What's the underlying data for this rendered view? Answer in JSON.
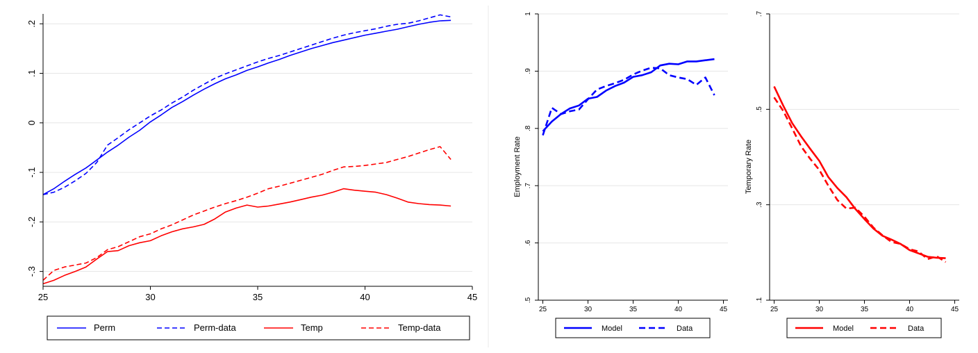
{
  "colors": {
    "blue": "#0000ff",
    "red": "#ff0000",
    "grid": "#e6e6e6"
  },
  "chart_data": [
    {
      "type": "line",
      "id": "left",
      "xlim": [
        25,
        45
      ],
      "ylim": [
        -0.33,
        0.22
      ],
      "xticks": [
        25,
        30,
        35,
        40,
        45
      ],
      "yticks": [
        -0.3,
        -0.2,
        -0.1,
        0,
        0.1,
        0.2
      ],
      "ytick_labels": [
        "-.3",
        "-.2",
        "-.1",
        "0",
        ".1",
        ".2"
      ],
      "grid": true,
      "legend_position": "bottom",
      "series": [
        {
          "name": "Perm",
          "color": "#0000ff",
          "style": "solid",
          "x": [
            25,
            25.5,
            26,
            26.5,
            27,
            27.5,
            28,
            28.5,
            29,
            29.5,
            30,
            30.5,
            31,
            31.5,
            32,
            32.5,
            33,
            33.5,
            34,
            34.5,
            35,
            35.5,
            36,
            36.5,
            37,
            37.5,
            38,
            38.5,
            39,
            39.5,
            40,
            40.5,
            41,
            41.5,
            42,
            42.5,
            43,
            43.5,
            44
          ],
          "y": [
            -0.145,
            -0.133,
            -0.118,
            -0.104,
            -0.091,
            -0.075,
            -0.059,
            -0.045,
            -0.029,
            -0.015,
            0.002,
            0.016,
            0.031,
            0.043,
            0.056,
            0.068,
            0.079,
            0.089,
            0.097,
            0.106,
            0.113,
            0.121,
            0.128,
            0.136,
            0.143,
            0.15,
            0.156,
            0.162,
            0.167,
            0.172,
            0.177,
            0.181,
            0.185,
            0.189,
            0.194,
            0.199,
            0.203,
            0.206,
            0.207
          ]
        },
        {
          "name": "Perm-data",
          "color": "#0000ff",
          "style": "dash",
          "x": [
            25,
            25.5,
            26,
            26.5,
            27,
            27.5,
            28,
            28.5,
            29,
            29.5,
            30,
            30.5,
            31,
            31.5,
            32,
            32.5,
            33,
            33.5,
            34,
            34.5,
            35,
            35.5,
            36,
            36.5,
            37,
            37.5,
            38,
            38.5,
            39,
            39.5,
            40,
            40.5,
            41,
            41.5,
            42,
            42.5,
            43,
            43.5,
            44
          ],
          "y": [
            -0.145,
            -0.14,
            -0.13,
            -0.117,
            -0.102,
            -0.08,
            -0.045,
            -0.03,
            -0.014,
            0.0,
            0.014,
            0.026,
            0.04,
            0.052,
            0.066,
            0.078,
            0.09,
            0.099,
            0.107,
            0.115,
            0.123,
            0.13,
            0.136,
            0.143,
            0.15,
            0.157,
            0.164,
            0.171,
            0.177,
            0.182,
            0.186,
            0.19,
            0.195,
            0.199,
            0.201,
            0.206,
            0.212,
            0.218,
            0.214
          ]
        },
        {
          "name": "Temp",
          "color": "#ff0000",
          "style": "solid",
          "x": [
            25,
            25.5,
            26,
            26.5,
            27,
            27.5,
            28,
            28.5,
            29,
            29.5,
            30,
            30.5,
            31,
            31.5,
            32,
            32.5,
            33,
            33.5,
            34,
            34.5,
            35,
            35.5,
            36,
            36.5,
            37,
            37.5,
            38,
            38.5,
            39,
            39.5,
            40,
            40.5,
            41,
            41.5,
            42,
            42.5,
            43,
            43.5,
            44
          ],
          "y": [
            -0.325,
            -0.318,
            -0.308,
            -0.3,
            -0.291,
            -0.275,
            -0.26,
            -0.258,
            -0.248,
            -0.242,
            -0.238,
            -0.228,
            -0.22,
            -0.214,
            -0.21,
            -0.205,
            -0.194,
            -0.18,
            -0.172,
            -0.166,
            -0.17,
            -0.168,
            -0.164,
            -0.16,
            -0.155,
            -0.15,
            -0.146,
            -0.14,
            -0.133,
            -0.136,
            -0.138,
            -0.14,
            -0.145,
            -0.152,
            -0.16,
            -0.163,
            -0.165,
            -0.166,
            -0.168
          ]
        },
        {
          "name": "Temp-data",
          "color": "#ff0000",
          "style": "dash",
          "x": [
            25,
            25.5,
            26,
            26.5,
            27,
            27.5,
            28,
            28.5,
            29,
            29.5,
            30,
            30.5,
            31,
            31.5,
            32,
            32.5,
            33,
            33.5,
            34,
            34.5,
            35,
            35.5,
            36,
            36.5,
            37,
            37.5,
            38,
            38.5,
            39,
            39.5,
            40,
            40.5,
            41,
            41.5,
            42,
            42.5,
            43,
            43.5,
            44
          ],
          "y": [
            -0.318,
            -0.298,
            -0.291,
            -0.287,
            -0.283,
            -0.272,
            -0.256,
            -0.25,
            -0.24,
            -0.23,
            -0.224,
            -0.214,
            -0.206,
            -0.196,
            -0.186,
            -0.178,
            -0.17,
            -0.163,
            -0.157,
            -0.15,
            -0.142,
            -0.133,
            -0.128,
            -0.122,
            -0.116,
            -0.11,
            -0.104,
            -0.096,
            -0.089,
            -0.088,
            -0.086,
            -0.083,
            -0.08,
            -0.074,
            -0.068,
            -0.061,
            -0.054,
            -0.048,
            -0.074
          ]
        }
      ]
    },
    {
      "type": "line",
      "id": "middle",
      "ylabel": "Employment Rate",
      "xlim": [
        24.5,
        45.5
      ],
      "ylim": [
        0.5,
        1.0
      ],
      "xticks": [
        25,
        30,
        35,
        40,
        45
      ],
      "yticks": [
        0.5,
        0.6,
        0.7,
        0.8,
        0.9,
        1.0
      ],
      "ytick_labels": [
        ".5",
        ".6",
        ".7",
        ".8",
        ".9",
        "1"
      ],
      "grid": true,
      "legend_position": "bottom",
      "series": [
        {
          "name": "Model",
          "color": "#0000ff",
          "style": "solid",
          "x": [
            25,
            26,
            27,
            28,
            29,
            30,
            31,
            32,
            33,
            34,
            35,
            36,
            37,
            38,
            39,
            40,
            41,
            42,
            43,
            44
          ],
          "y": [
            0.795,
            0.812,
            0.825,
            0.835,
            0.84,
            0.852,
            0.855,
            0.866,
            0.874,
            0.88,
            0.89,
            0.893,
            0.898,
            0.91,
            0.913,
            0.912,
            0.917,
            0.917,
            0.919,
            0.921
          ]
        },
        {
          "name": "Data",
          "color": "#0000ff",
          "style": "dash",
          "x": [
            25,
            26,
            27,
            28,
            29,
            30,
            31,
            32,
            33,
            34,
            35,
            36,
            37,
            38,
            39,
            40,
            41,
            42,
            43,
            44
          ],
          "y": [
            0.788,
            0.836,
            0.825,
            0.83,
            0.833,
            0.851,
            0.868,
            0.874,
            0.879,
            0.885,
            0.894,
            0.901,
            0.906,
            0.905,
            0.893,
            0.889,
            0.886,
            0.876,
            0.889,
            0.858
          ]
        }
      ]
    },
    {
      "type": "line",
      "id": "right",
      "ylabel": "Temporary Rate",
      "xlim": [
        24.5,
        45.5
      ],
      "ylim": [
        0.1,
        0.7
      ],
      "xticks": [
        25,
        30,
        35,
        40,
        45
      ],
      "yticks": [
        0.1,
        0.3,
        0.5,
        0.7
      ],
      "ytick_labels": [
        ".1",
        ".3",
        ".5",
        ".7"
      ],
      "grid": true,
      "legend_position": "bottom",
      "series": [
        {
          "name": "Model",
          "color": "#ff0000",
          "style": "solid",
          "x": [
            25,
            26,
            27,
            28,
            29,
            30,
            31,
            32,
            33,
            34,
            35,
            36,
            37,
            38,
            39,
            40,
            41,
            42,
            43,
            44
          ],
          "y": [
            0.548,
            0.508,
            0.471,
            0.443,
            0.417,
            0.392,
            0.358,
            0.335,
            0.316,
            0.291,
            0.27,
            0.25,
            0.235,
            0.227,
            0.218,
            0.205,
            0.198,
            0.191,
            0.189,
            0.188
          ]
        },
        {
          "name": "Data",
          "color": "#ff0000",
          "style": "dash",
          "x": [
            25,
            26,
            27,
            28,
            29,
            30,
            31,
            32,
            33,
            34,
            35,
            36,
            37,
            38,
            39,
            40,
            41,
            42,
            43,
            44
          ],
          "y": [
            0.525,
            0.497,
            0.46,
            0.422,
            0.396,
            0.373,
            0.34,
            0.31,
            0.292,
            0.294,
            0.275,
            0.252,
            0.236,
            0.222,
            0.218,
            0.207,
            0.202,
            0.186,
            0.192,
            0.18
          ]
        }
      ]
    }
  ]
}
